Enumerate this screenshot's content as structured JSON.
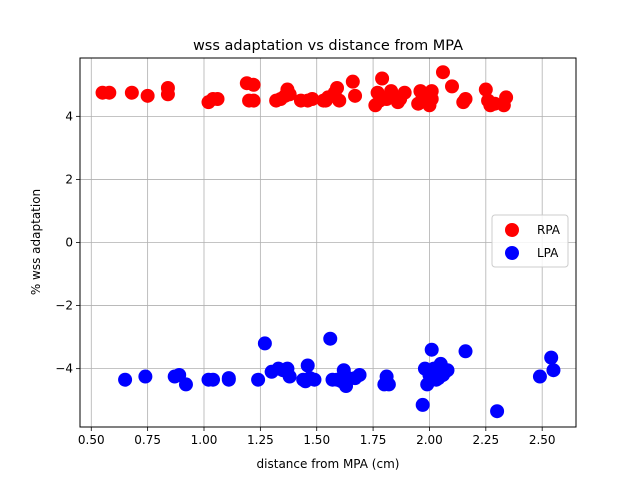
{
  "chart_data": {
    "type": "scatter",
    "title": "wss adaptation vs distance from MPA",
    "xlabel": "distance from MPA (cm)",
    "ylabel": "% wss adaptation",
    "xlim": [
      0.45,
      2.65
    ],
    "ylim": [
      -5.85,
      5.85
    ],
    "xticks": [
      0.5,
      0.75,
      1.0,
      1.25,
      1.5,
      1.75,
      2.0,
      2.25,
      2.5
    ],
    "xtick_labels": [
      "0.50",
      "0.75",
      "1.00",
      "1.25",
      "1.50",
      "1.75",
      "2.00",
      "2.25",
      "2.50"
    ],
    "yticks": [
      -4,
      -2,
      0,
      2,
      4
    ],
    "ytick_labels": [
      "−4",
      "−2",
      "0",
      "2",
      "4"
    ],
    "grid": true,
    "legend_position": "right",
    "series": [
      {
        "name": "RPA",
        "color": "#ff0000",
        "points": [
          [
            0.55,
            4.75
          ],
          [
            0.58,
            4.75
          ],
          [
            0.68,
            4.75
          ],
          [
            0.75,
            4.65
          ],
          [
            0.84,
            4.7
          ],
          [
            0.84,
            4.9
          ],
          [
            1.02,
            4.45
          ],
          [
            1.04,
            4.55
          ],
          [
            1.06,
            4.55
          ],
          [
            1.19,
            5.05
          ],
          [
            1.2,
            4.5
          ],
          [
            1.22,
            5.0
          ],
          [
            1.22,
            4.5
          ],
          [
            1.32,
            4.5
          ],
          [
            1.34,
            4.55
          ],
          [
            1.36,
            4.65
          ],
          [
            1.37,
            4.85
          ],
          [
            1.38,
            4.7
          ],
          [
            1.43,
            4.5
          ],
          [
            1.46,
            4.5
          ],
          [
            1.48,
            4.55
          ],
          [
            1.53,
            4.5
          ],
          [
            1.54,
            4.5
          ],
          [
            1.55,
            4.6
          ],
          [
            1.58,
            4.75
          ],
          [
            1.59,
            4.9
          ],
          [
            1.6,
            4.5
          ],
          [
            1.66,
            5.1
          ],
          [
            1.67,
            4.65
          ],
          [
            1.76,
            4.35
          ],
          [
            1.77,
            4.75
          ],
          [
            1.78,
            4.5
          ],
          [
            1.79,
            5.2
          ],
          [
            1.81,
            4.55
          ],
          [
            1.83,
            4.8
          ],
          [
            1.84,
            4.65
          ],
          [
            1.86,
            4.45
          ],
          [
            1.87,
            4.55
          ],
          [
            1.89,
            4.75
          ],
          [
            1.95,
            4.4
          ],
          [
            1.96,
            4.8
          ],
          [
            1.97,
            4.6
          ],
          [
            1.99,
            4.5
          ],
          [
            2.0,
            4.35
          ],
          [
            2.01,
            4.8
          ],
          [
            2.01,
            4.55
          ],
          [
            2.06,
            5.4
          ],
          [
            2.1,
            4.95
          ],
          [
            2.15,
            4.45
          ],
          [
            2.16,
            4.55
          ],
          [
            2.25,
            4.85
          ],
          [
            2.26,
            4.5
          ],
          [
            2.27,
            4.35
          ],
          [
            2.29,
            4.4
          ],
          [
            2.33,
            4.35
          ],
          [
            2.34,
            4.6
          ]
        ]
      },
      {
        "name": "LPA",
        "color": "#0000ff",
        "points": [
          [
            0.65,
            -4.35
          ],
          [
            0.74,
            -4.25
          ],
          [
            0.87,
            -4.25
          ],
          [
            0.89,
            -4.2
          ],
          [
            0.92,
            -4.5
          ],
          [
            1.02,
            -4.35
          ],
          [
            1.04,
            -4.35
          ],
          [
            1.11,
            -4.3
          ],
          [
            1.11,
            -4.35
          ],
          [
            1.24,
            -4.35
          ],
          [
            1.27,
            -3.2
          ],
          [
            1.3,
            -4.1
          ],
          [
            1.33,
            -4.0
          ],
          [
            1.35,
            -4.05
          ],
          [
            1.37,
            -4.0
          ],
          [
            1.38,
            -4.25
          ],
          [
            1.44,
            -4.35
          ],
          [
            1.45,
            -4.4
          ],
          [
            1.46,
            -3.9
          ],
          [
            1.47,
            -4.3
          ],
          [
            1.49,
            -4.35
          ],
          [
            1.56,
            -3.05
          ],
          [
            1.57,
            -4.35
          ],
          [
            1.59,
            -4.35
          ],
          [
            1.61,
            -4.4
          ],
          [
            1.62,
            -4.05
          ],
          [
            1.63,
            -4.55
          ],
          [
            1.64,
            -4.3
          ],
          [
            1.67,
            -4.3
          ],
          [
            1.69,
            -4.2
          ],
          [
            1.8,
            -4.5
          ],
          [
            1.81,
            -4.25
          ],
          [
            1.82,
            -4.5
          ],
          [
            1.97,
            -5.15
          ],
          [
            1.98,
            -4.0
          ],
          [
            1.99,
            -4.5
          ],
          [
            2.0,
            -4.2
          ],
          [
            2.01,
            -3.4
          ],
          [
            2.02,
            -4.0
          ],
          [
            2.03,
            -4.35
          ],
          [
            2.04,
            -4.3
          ],
          [
            2.05,
            -3.85
          ],
          [
            2.06,
            -4.2
          ],
          [
            2.07,
            -4.1
          ],
          [
            2.08,
            -4.05
          ],
          [
            2.16,
            -3.45
          ],
          [
            2.3,
            -5.35
          ],
          [
            2.49,
            -4.25
          ],
          [
            2.54,
            -3.65
          ],
          [
            2.55,
            -4.05
          ]
        ]
      }
    ]
  }
}
